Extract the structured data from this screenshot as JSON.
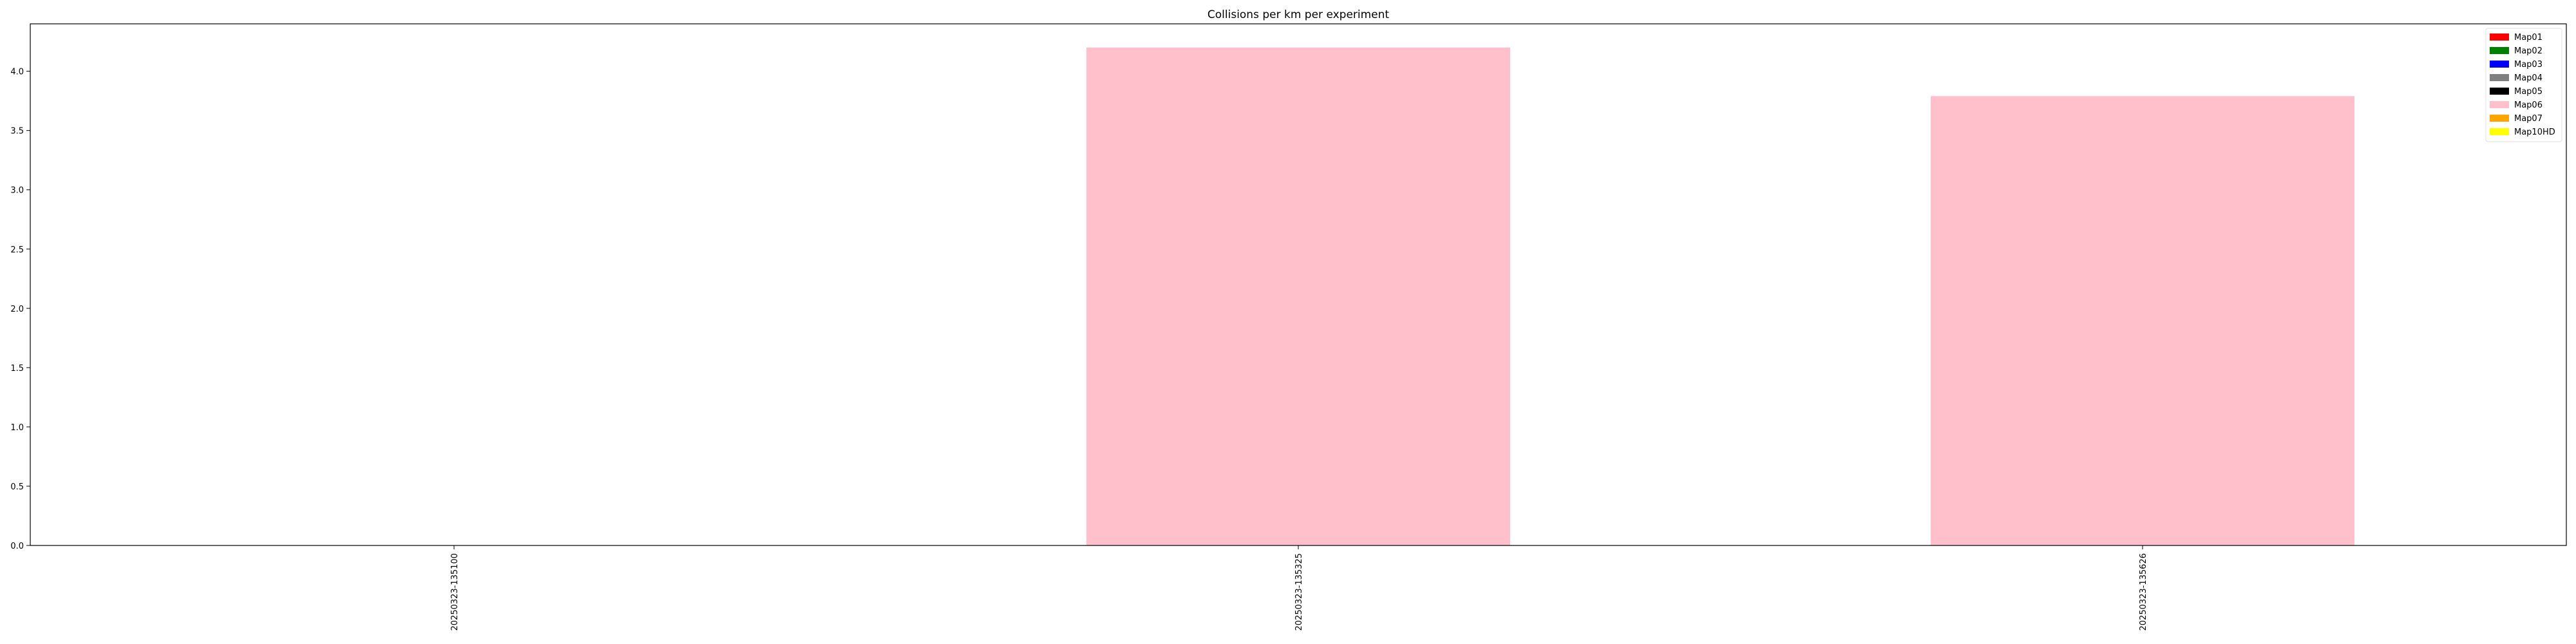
{
  "chart_data": {
    "type": "bar",
    "title": "Collisions per km per experiment",
    "xlabel": "",
    "ylabel": "",
    "categories": [
      "20250323-135100",
      "20250323-135325",
      "20250323-135626"
    ],
    "ylim": [
      0,
      4.4
    ],
    "yticks": [
      "0.0",
      "0.5",
      "1.0",
      "1.5",
      "2.0",
      "2.5",
      "3.0",
      "3.5",
      "4.0"
    ],
    "grid": false,
    "legend_position": "top-right",
    "series": [
      {
        "name": "Map01",
        "color": "#ff0000",
        "values": [
          0,
          0,
          0
        ]
      },
      {
        "name": "Map02",
        "color": "#008000",
        "values": [
          0,
          0,
          0
        ]
      },
      {
        "name": "Map03",
        "color": "#0000ff",
        "values": [
          0,
          0,
          0
        ]
      },
      {
        "name": "Map04",
        "color": "#808080",
        "values": [
          0,
          0,
          0
        ]
      },
      {
        "name": "Map05",
        "color": "#000000",
        "values": [
          0,
          0,
          0
        ]
      },
      {
        "name": "Map06",
        "color": "#ffc0cb",
        "values": [
          0,
          4.2,
          3.79
        ]
      },
      {
        "name": "Map07",
        "color": "#ffa500",
        "values": [
          0,
          0,
          0
        ]
      },
      {
        "name": "Map10HD",
        "color": "#ffff00",
        "values": [
          0,
          0,
          0
        ]
      }
    ]
  }
}
